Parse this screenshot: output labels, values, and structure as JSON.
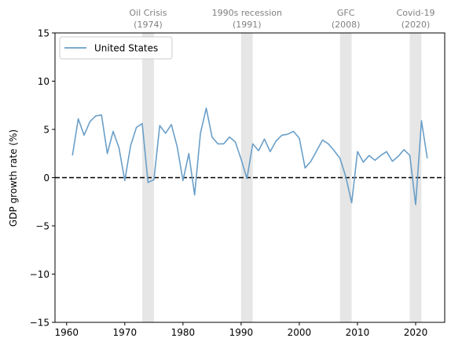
{
  "chart_data": {
    "type": "line",
    "title": "",
    "xlabel": "",
    "ylabel": "GDP growth rate (%)",
    "xlim": [
      1958,
      2025
    ],
    "ylim": [
      -15,
      15
    ],
    "xticks": [
      1960,
      1970,
      1980,
      1990,
      2000,
      2010,
      2020
    ],
    "yticks": [
      -15,
      -10,
      -5,
      0,
      5,
      10,
      15
    ],
    "grid": false,
    "legend": {
      "position": "top-left"
    },
    "reference_line": {
      "y": 0,
      "style": "dashed",
      "color": "#000000"
    },
    "recessions": [
      {
        "line1": "Oil Crisis",
        "line2": "(1974)",
        "start": 1973,
        "end": 1975
      },
      {
        "line1": "1990s recession",
        "line2": "(1991)",
        "start": 1990,
        "end": 1992
      },
      {
        "line1": "GFC",
        "line2": "(2008)",
        "start": 2007,
        "end": 2009
      },
      {
        "line1": "Covid-19",
        "line2": "(2020)",
        "start": 2019,
        "end": 2021
      }
    ],
    "series": [
      {
        "name": "United States",
        "color": "#6a9fc8",
        "x": [
          1961,
          1962,
          1963,
          1964,
          1965,
          1966,
          1967,
          1968,
          1969,
          1970,
          1971,
          1972,
          1973,
          1974,
          1975,
          1976,
          1977,
          1978,
          1979,
          1980,
          1981,
          1982,
          1983,
          1984,
          1985,
          1986,
          1987,
          1988,
          1989,
          1990,
          1991,
          1992,
          1993,
          1994,
          1995,
          1996,
          1997,
          1998,
          1999,
          2000,
          2001,
          2002,
          2003,
          2004,
          2005,
          2006,
          2007,
          2008,
          2009,
          2010,
          2011,
          2012,
          2013,
          2014,
          2015,
          2016,
          2017,
          2018,
          2019,
          2020,
          2021,
          2022
        ],
        "values": [
          2.3,
          6.1,
          4.4,
          5.8,
          6.4,
          6.5,
          2.5,
          4.8,
          3.1,
          -0.3,
          3.3,
          5.2,
          5.6,
          -0.5,
          -0.2,
          5.4,
          4.6,
          5.5,
          3.2,
          -0.3,
          2.5,
          -1.8,
          4.6,
          7.2,
          4.2,
          3.5,
          3.5,
          4.2,
          3.7,
          1.9,
          -0.1,
          3.5,
          2.8,
          4.0,
          2.7,
          3.8,
          4.4,
          4.5,
          4.8,
          4.1,
          1.0,
          1.7,
          2.8,
          3.9,
          3.5,
          2.8,
          2.0,
          0.1,
          -2.6,
          2.7,
          1.6,
          2.3,
          1.8,
          2.3,
          2.7,
          1.7,
          2.2,
          2.9,
          2.3,
          -2.8,
          5.9,
          2.0
        ]
      }
    ]
  }
}
